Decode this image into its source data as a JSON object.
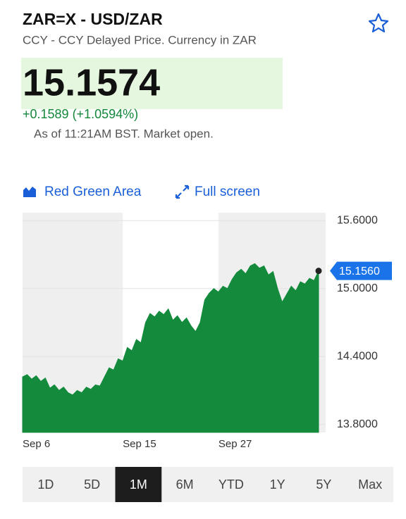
{
  "header": {
    "title": "ZAR=X - USD/ZAR",
    "subtitle": "CCY - CCY Delayed Price. Currency in ZAR"
  },
  "quote": {
    "price": "15.1574",
    "change": "+0.1589 (+1.0594%)",
    "status": "As of 11:21AM BST. Market open."
  },
  "controls": [
    "Red Green Area",
    "Full screen"
  ],
  "ranges": [
    "1D",
    "5D",
    "1M",
    "6M",
    "YTD",
    "1Y",
    "5Y",
    "Max"
  ],
  "selected_range": "1M",
  "chart_data": {
    "type": "area",
    "color": "#138a3c",
    "categories": [
      "Sep 6",
      null,
      null,
      null,
      null,
      null,
      null,
      null,
      null,
      null,
      null,
      null,
      null,
      null,
      null,
      null,
      null,
      null,
      null,
      null,
      null,
      null,
      "Sep 15",
      null,
      null,
      null,
      null,
      null,
      null,
      null,
      null,
      null,
      null,
      null,
      null,
      null,
      null,
      null,
      null,
      null,
      null,
      null,
      null,
      "Sep 27",
      null,
      null,
      null,
      null,
      null,
      null,
      null,
      null,
      null,
      null,
      null,
      null,
      null,
      null,
      null,
      null,
      null,
      null,
      null,
      null,
      null,
      null
    ],
    "values": [
      14.22,
      14.24,
      14.2,
      14.23,
      14.18,
      14.21,
      14.12,
      14.15,
      14.1,
      14.13,
      14.08,
      14.06,
      14.1,
      14.08,
      14.13,
      14.11,
      14.15,
      14.14,
      14.22,
      14.3,
      14.28,
      14.38,
      14.36,
      14.48,
      14.45,
      14.55,
      14.52,
      14.7,
      14.78,
      14.75,
      14.8,
      14.77,
      14.82,
      14.72,
      14.76,
      14.7,
      14.74,
      14.67,
      14.62,
      14.7,
      14.9,
      14.96,
      15.0,
      14.97,
      15.02,
      15.0,
      15.08,
      15.14,
      15.17,
      15.13,
      15.2,
      15.22,
      15.18,
      15.2,
      15.12,
      15.15,
      15.0,
      14.88,
      14.95,
      15.02,
      14.98,
      15.06,
      15.04,
      15.09,
      15.07,
      15.156
    ],
    "marker": {
      "value": 15.156,
      "label": "15.1560"
    },
    "ylim": [
      13.73,
      15.67
    ],
    "yticks": [
      {
        "value": 15.6,
        "label": "15.6000"
      },
      {
        "value": 15.0,
        "label": "15.0000"
      },
      {
        "value": 14.4,
        "label": "14.4000"
      },
      {
        "value": 13.8,
        "label": "13.8000"
      }
    ],
    "grid": true
  }
}
